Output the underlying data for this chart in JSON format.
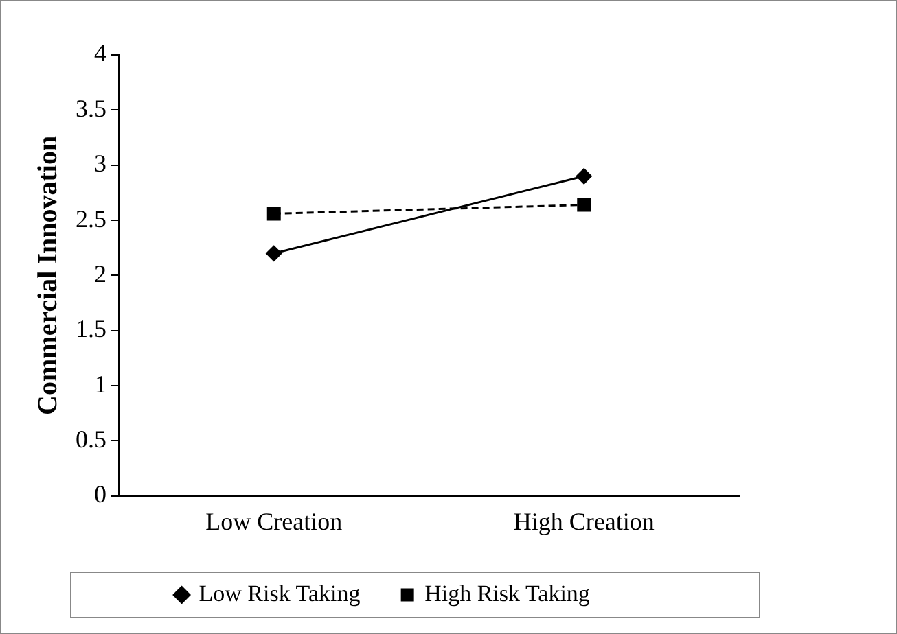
{
  "chart_data": {
    "type": "line",
    "ylabel": "Commercial Innovation",
    "categories": [
      "Low Creation",
      "High Creation"
    ],
    "series": [
      {
        "name": "Low Risk Taking",
        "color": "#000000",
        "values": [
          2.2,
          2.9
        ],
        "marker": "diamond",
        "line_style": "solid"
      },
      {
        "name": "High Risk Taking",
        "color": "#000000",
        "values": [
          2.56,
          2.64
        ],
        "marker": "square",
        "line_style": "dashed"
      }
    ],
    "ylim": [
      0,
      4
    ],
    "yticks": [
      0,
      0.5,
      1,
      1.5,
      2,
      2.5,
      3,
      3.5,
      4
    ],
    "grid": false,
    "legend": "bottom"
  }
}
